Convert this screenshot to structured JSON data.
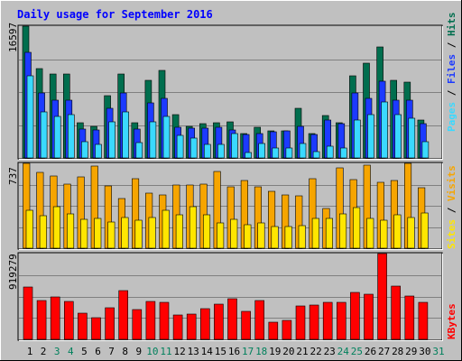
{
  "chart_data": {
    "type": "bar",
    "title": "Daily usage for September 2016",
    "days": [
      "1",
      "2",
      "3",
      "4",
      "5",
      "6",
      "7",
      "8",
      "9",
      "10",
      "11",
      "12",
      "13",
      "14",
      "15",
      "16",
      "17",
      "18",
      "19",
      "20",
      "21",
      "22",
      "23",
      "24",
      "25",
      "26",
      "27",
      "28",
      "29",
      "30",
      "31"
    ],
    "weekend_days": [
      "3",
      "4",
      "10",
      "11",
      "17",
      "18",
      "24",
      "25",
      "31"
    ],
    "panels": {
      "hits": {
        "max_label": "16597",
        "ylim": [
          0,
          16597
        ],
        "series": [
          {
            "name": "Hits",
            "color": "#006e4e",
            "values": [
              16597,
              11300,
              10600,
              10600,
              4400,
              4000,
              7900,
              10600,
              4400,
              9800,
              11000,
              5400,
              4000,
              4300,
              4400,
              4600,
              3100,
              3900,
              3400,
              3400,
              6200,
              3100,
              5300,
              4400,
              10300,
              11900,
              14000,
              9800,
              9500,
              4800,
              0
            ]
          },
          {
            "name": "Files",
            "color": "#1c3aff",
            "values": [
              13300,
              8200,
              7300,
              7300,
              3600,
              3500,
              6300,
              8200,
              3600,
              6900,
              7500,
              3900,
              3800,
              3800,
              3900,
              3500,
              2900,
              3100,
              3300,
              3400,
              4000,
              2900,
              4800,
              4300,
              8200,
              7500,
              9700,
              7300,
              7300,
              4300,
              0
            ]
          },
          {
            "name": "Pages",
            "color": "#3ad9ff",
            "values": [
              10300,
              5800,
              5200,
              5400,
              2100,
              1700,
              4500,
              5800,
              1900,
              4500,
              5200,
              2800,
              2500,
              1700,
              1700,
              3100,
              700,
              1800,
              1300,
              1300,
              1800,
              800,
              1500,
              1300,
              4800,
              5400,
              7000,
              5400,
              5000,
              2100,
              0
            ]
          }
        ]
      },
      "visits": {
        "max_label": "737",
        "ylim": [
          0,
          737
        ],
        "series": [
          {
            "name": "Visits",
            "color": "#f6a500",
            "values": [
              737,
              660,
              625,
              555,
              620,
              710,
              540,
              435,
              600,
              475,
              460,
              550,
              545,
              560,
              670,
              530,
              590,
              530,
              495,
              460,
              455,
              600,
              345,
              700,
              595,
              720,
              575,
              590,
              735,
              525,
              0
            ]
          },
          {
            "name": "Sites",
            "color": "#ffe600",
            "values": [
              330,
              280,
              360,
              300,
              250,
              260,
              225,
              265,
              240,
              265,
              330,
              290,
              360,
              290,
              220,
              250,
              205,
              220,
              185,
              185,
              195,
              260,
              255,
              300,
              350,
              255,
              245,
              290,
              270,
              305,
              0
            ]
          }
        ]
      },
      "kbytes": {
        "max_label": "919279",
        "ylim": [
          0,
          919279
        ],
        "series": [
          {
            "name": "KBytes",
            "color": "#ff0000",
            "values": [
              566000,
              420000,
              455000,
              410000,
              280000,
              235000,
              335000,
              520000,
              320000,
              402000,
              395000,
              258000,
              270000,
              332000,
              375000,
              432000,
              300000,
              420000,
              185000,
              200000,
              355000,
              370000,
              393000,
              393000,
              500000,
              480000,
              919279,
              568000,
              460000,
              392000,
              0
            ]
          }
        ]
      }
    },
    "legend": {
      "hits": [
        "Pages",
        "/",
        "Files",
        "/",
        "Hits"
      ],
      "visits": [
        "Sites",
        "/",
        "Visits"
      ],
      "kbytes": [
        "KBytes"
      ]
    },
    "colors": {
      "background": "#c0c0c0",
      "title": "#0000ff",
      "weekday_label": "#000000",
      "weekend_label": "#00805c",
      "slash": "#000000"
    }
  }
}
